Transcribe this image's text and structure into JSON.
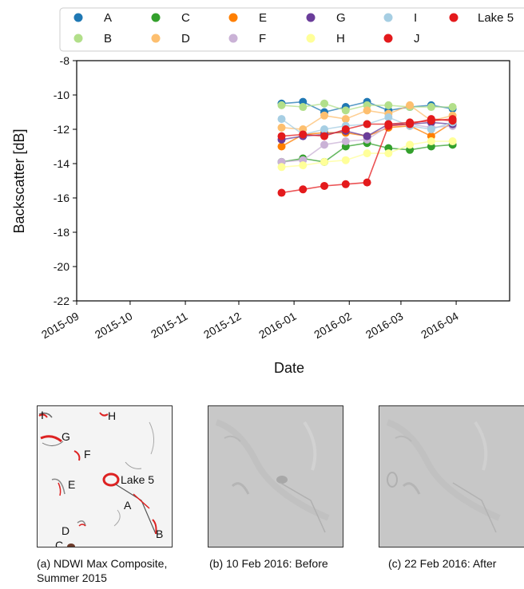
{
  "chart_data": {
    "type": "line",
    "xlabel": "Date",
    "ylabel": "Backscatter [dB]",
    "ylim": [
      -22,
      -8
    ],
    "xlim": [
      "2015-09-01",
      "2016-05-01"
    ],
    "yticks": [
      -22,
      -20,
      -18,
      -16,
      -14,
      -12,
      -10,
      -8
    ],
    "xticks": [
      "2015-09",
      "2015-10",
      "2015-11",
      "2015-12",
      "2016-01",
      "2016-02",
      "2016-03",
      "2016-04"
    ],
    "grid": false,
    "legend_placement": "top, outside",
    "x": [
      "2015-12-25",
      "2016-01-06",
      "2016-01-18",
      "2016-01-30",
      "2016-02-11",
      "2016-02-23",
      "2016-03-06",
      "2016-03-18",
      "2016-03-30"
    ],
    "series": [
      {
        "name": "A",
        "color": "#1f78b4",
        "values": [
          -10.5,
          -10.4,
          -11.0,
          -10.7,
          -10.4,
          -10.9,
          -10.7,
          -10.6,
          -10.8
        ]
      },
      {
        "name": "B",
        "color": "#b2df8a",
        "values": [
          -10.6,
          -10.7,
          -10.5,
          -10.9,
          -10.6,
          -10.6,
          -10.7,
          -10.7,
          -10.7
        ]
      },
      {
        "name": "C",
        "color": "#33a02c",
        "values": [
          -13.9,
          -13.7,
          -13.9,
          -13.0,
          -12.8,
          -13.1,
          -13.2,
          -13.0,
          -12.9
        ]
      },
      {
        "name": "D",
        "color": "#fdbf6f",
        "values": [
          -11.9,
          -12.0,
          -11.2,
          -11.4,
          -10.9,
          -11.1,
          -10.6,
          -11.5,
          -11.2
        ]
      },
      {
        "name": "E",
        "color": "#ff7f00",
        "values": [
          -13.0,
          -12.3,
          -12.2,
          -12.2,
          -12.4,
          -11.9,
          -11.8,
          -12.4,
          -11.6
        ]
      },
      {
        "name": "F",
        "color": "#cab2d6",
        "values": [
          -13.9,
          -13.8,
          -12.9,
          -12.7,
          -12.6,
          -11.8,
          -11.7,
          -11.9,
          -11.8
        ]
      },
      {
        "name": "G",
        "color": "#6a3d9a",
        "values": [
          -12.6,
          -12.4,
          -12.3,
          -12.1,
          -12.4,
          -11.7,
          -11.7,
          -11.6,
          -11.7
        ]
      },
      {
        "name": "H",
        "color": "#ffff99",
        "values": [
          -14.2,
          -14.1,
          -13.9,
          -13.8,
          -13.4,
          -13.4,
          -12.9,
          -12.7,
          -12.7
        ]
      },
      {
        "name": "I",
        "color": "#a6cee3",
        "values": [
          -11.4,
          -12.3,
          -12.0,
          -11.8,
          -11.7,
          -11.3,
          -11.8,
          -12.0,
          -11.6
        ]
      },
      {
        "name": "J",
        "color": "#e31a1c",
        "values": [
          -12.4,
          -12.3,
          -12.4,
          -12.0,
          -11.7,
          -11.7,
          -11.6,
          -11.5,
          -11.4
        ]
      },
      {
        "name": "Lake 5",
        "color": "#e41a1c",
        "values": [
          -15.7,
          -15.5,
          -15.3,
          -15.2,
          -15.1,
          -11.8,
          -11.7,
          -11.4,
          -11.5
        ]
      }
    ]
  },
  "panels": [
    {
      "caption": "(a) NDWI Max Composite,\nSummer 2015",
      "labels": [
        "I",
        "H",
        "G",
        "F",
        "E",
        "Lake 5",
        "A",
        "D",
        "B",
        "C"
      ]
    },
    {
      "caption": "(b) 10 Feb 2016: Before"
    },
    {
      "caption": "(c) 22 Feb 2016: After"
    }
  ]
}
